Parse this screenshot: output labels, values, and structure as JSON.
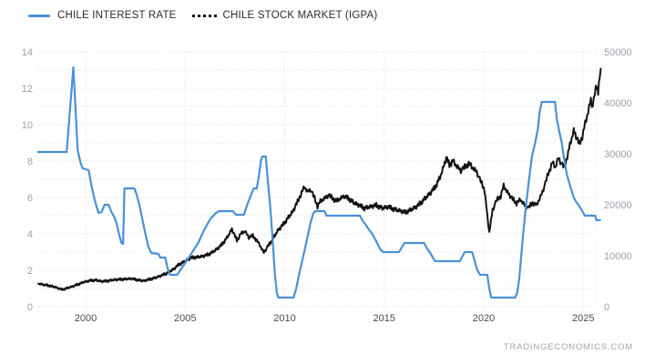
{
  "legend": [
    {
      "label": "CHILE INTEREST RATE",
      "color": "#4a90d9",
      "style": "solid"
    },
    {
      "label": "CHILE STOCK MARKET (IGPA)",
      "color": "#131313",
      "style": "dotted"
    }
  ],
  "watermark": "TRADINGECONOMICS.COM",
  "colors": {
    "interest_rate_line": "#4a90d9",
    "stock_line": "#131313",
    "grid": "#d9d9d9",
    "y_axis_labels": "#9aa0a8",
    "x_axis_labels": "#4a4a4a"
  },
  "chart_data": {
    "type": "line",
    "title": "",
    "x_range": [
      1997.6,
      2025.9
    ],
    "x_ticks": [
      "2000",
      "2005",
      "2010",
      "2015",
      "2020",
      "2025"
    ],
    "left_axis": {
      "label": "",
      "min": 0,
      "max": 14,
      "tick_labels": [
        "0",
        "2",
        "4",
        "6",
        "8",
        "10",
        "12",
        "14"
      ],
      "grid_step": 1
    },
    "right_axis": {
      "label": "",
      "min": 0,
      "max": 50000,
      "tick_labels": [
        "0",
        "10000",
        "20000",
        "30000",
        "40000",
        "50000"
      ]
    },
    "grid": "dotted",
    "legend_position": "top-left",
    "series": [
      {
        "name": "CHILE INTEREST RATE",
        "axis": "left",
        "color": "#4a90d9",
        "points": [
          [
            1997.62,
            8.5
          ],
          [
            1999.05,
            8.5
          ],
          [
            1999.38,
            13.15
          ],
          [
            1999.6,
            8.6
          ],
          [
            1999.75,
            7.9
          ],
          [
            1999.85,
            7.6
          ],
          [
            2000.15,
            7.5
          ],
          [
            2000.3,
            6.6
          ],
          [
            2000.45,
            5.9
          ],
          [
            2000.55,
            5.5
          ],
          [
            2000.65,
            5.15
          ],
          [
            2000.8,
            5.2
          ],
          [
            2000.95,
            5.6
          ],
          [
            2001.15,
            5.6
          ],
          [
            2001.3,
            5.2
          ],
          [
            2001.45,
            4.9
          ],
          [
            2001.55,
            4.6
          ],
          [
            2001.7,
            3.9
          ],
          [
            2001.8,
            3.5
          ],
          [
            2001.88,
            3.45
          ],
          [
            2001.95,
            6.5
          ],
          [
            2002.45,
            6.5
          ],
          [
            2002.55,
            6.2
          ],
          [
            2002.7,
            5.6
          ],
          [
            2002.85,
            4.8
          ],
          [
            2003.0,
            4.0
          ],
          [
            2003.15,
            3.3
          ],
          [
            2003.3,
            2.95
          ],
          [
            2003.65,
            2.9
          ],
          [
            2003.75,
            2.7
          ],
          [
            2004.0,
            2.7
          ],
          [
            2004.1,
            2.2
          ],
          [
            2004.2,
            1.8
          ],
          [
            2004.25,
            1.75
          ],
          [
            2004.6,
            1.75
          ],
          [
            2004.75,
            2.0
          ],
          [
            2005.0,
            2.4
          ],
          [
            2005.3,
            2.9
          ],
          [
            2005.65,
            3.5
          ],
          [
            2005.95,
            4.2
          ],
          [
            2006.25,
            4.8
          ],
          [
            2006.55,
            5.15
          ],
          [
            2006.7,
            5.25
          ],
          [
            2007.4,
            5.25
          ],
          [
            2007.55,
            5.05
          ],
          [
            2007.95,
            5.05
          ],
          [
            2008.15,
            5.7
          ],
          [
            2008.35,
            6.25
          ],
          [
            2008.45,
            6.5
          ],
          [
            2008.6,
            6.5
          ],
          [
            2008.72,
            7.3
          ],
          [
            2008.82,
            8.1
          ],
          [
            2008.88,
            8.25
          ],
          [
            2009.05,
            8.25
          ],
          [
            2009.15,
            7.0
          ],
          [
            2009.28,
            5.4
          ],
          [
            2009.4,
            3.6
          ],
          [
            2009.5,
            1.9
          ],
          [
            2009.6,
            0.8
          ],
          [
            2009.68,
            0.5
          ],
          [
            2010.45,
            0.5
          ],
          [
            2010.58,
            1.0
          ],
          [
            2010.72,
            1.75
          ],
          [
            2010.88,
            2.5
          ],
          [
            2011.02,
            3.2
          ],
          [
            2011.18,
            4.0
          ],
          [
            2011.32,
            4.7
          ],
          [
            2011.45,
            5.15
          ],
          [
            2011.55,
            5.25
          ],
          [
            2012.0,
            5.25
          ],
          [
            2012.1,
            5.0
          ],
          [
            2013.78,
            5.0
          ],
          [
            2013.9,
            4.75
          ],
          [
            2014.08,
            4.5
          ],
          [
            2014.22,
            4.25
          ],
          [
            2014.4,
            4.0
          ],
          [
            2014.6,
            3.6
          ],
          [
            2014.8,
            3.15
          ],
          [
            2014.95,
            3.0
          ],
          [
            2015.75,
            3.0
          ],
          [
            2015.88,
            3.25
          ],
          [
            2016.02,
            3.5
          ],
          [
            2017.0,
            3.5
          ],
          [
            2017.12,
            3.25
          ],
          [
            2017.28,
            3.0
          ],
          [
            2017.42,
            2.75
          ],
          [
            2017.55,
            2.5
          ],
          [
            2018.8,
            2.5
          ],
          [
            2018.92,
            2.75
          ],
          [
            2019.05,
            3.0
          ],
          [
            2019.42,
            3.0
          ],
          [
            2019.55,
            2.5
          ],
          [
            2019.68,
            2.0
          ],
          [
            2019.82,
            1.75
          ],
          [
            2020.18,
            1.75
          ],
          [
            2020.28,
            1.0
          ],
          [
            2020.38,
            0.5
          ],
          [
            2021.58,
            0.5
          ],
          [
            2021.68,
            0.75
          ],
          [
            2021.78,
            1.5
          ],
          [
            2021.88,
            2.75
          ],
          [
            2021.98,
            4.0
          ],
          [
            2022.12,
            5.5
          ],
          [
            2022.28,
            7.0
          ],
          [
            2022.42,
            8.25
          ],
          [
            2022.58,
            9.0
          ],
          [
            2022.72,
            9.75
          ],
          [
            2022.82,
            10.75
          ],
          [
            2022.92,
            11.25
          ],
          [
            2023.58,
            11.25
          ],
          [
            2023.68,
            10.25
          ],
          [
            2023.82,
            9.5
          ],
          [
            2023.92,
            9.0
          ],
          [
            2024.02,
            8.25
          ],
          [
            2024.18,
            7.25
          ],
          [
            2024.38,
            6.5
          ],
          [
            2024.52,
            6.0
          ],
          [
            2024.65,
            5.75
          ],
          [
            2024.82,
            5.5
          ],
          [
            2024.95,
            5.25
          ],
          [
            2025.08,
            5.0
          ],
          [
            2025.6,
            5.0
          ],
          [
            2025.65,
            4.75
          ],
          [
            2025.85,
            4.75
          ]
        ]
      },
      {
        "name": "CHILE STOCK MARKET (IGPA)",
        "axis": "right",
        "color": "#131313",
        "jitter": {
          "pattern": [
            0.2,
            -0.5,
            0.8,
            -0.2,
            0.5,
            -0.9,
            0.1,
            0.7,
            -0.4,
            1.0,
            -0.7,
            0.3,
            -1.0,
            0.6,
            -0.15,
            0.9,
            -0.6
          ],
          "base_amp": 150,
          "value_amp": 0.016
        },
        "points": [
          [
            1997.62,
            4500
          ],
          [
            1997.9,
            4300
          ],
          [
            1998.2,
            4100
          ],
          [
            1998.5,
            3800
          ],
          [
            1998.8,
            3350
          ],
          [
            1999.0,
            3550
          ],
          [
            1999.3,
            3900
          ],
          [
            1999.6,
            4350
          ],
          [
            1999.9,
            4800
          ],
          [
            2000.2,
            5100
          ],
          [
            2000.5,
            5200
          ],
          [
            2000.8,
            4950
          ],
          [
            2001.1,
            5050
          ],
          [
            2001.4,
            5250
          ],
          [
            2001.7,
            5350
          ],
          [
            2002.0,
            5400
          ],
          [
            2002.3,
            5500
          ],
          [
            2002.6,
            5250
          ],
          [
            2002.9,
            5050
          ],
          [
            2003.2,
            5350
          ],
          [
            2003.5,
            5650
          ],
          [
            2003.8,
            6100
          ],
          [
            2004.1,
            6600
          ],
          [
            2004.4,
            7300
          ],
          [
            2004.7,
            8300
          ],
          [
            2005.0,
            8900
          ],
          [
            2005.3,
            9600
          ],
          [
            2005.6,
            9700
          ],
          [
            2005.9,
            9900
          ],
          [
            2006.2,
            10300
          ],
          [
            2006.5,
            11000
          ],
          [
            2006.8,
            12000
          ],
          [
            2007.1,
            13500
          ],
          [
            2007.35,
            15200
          ],
          [
            2007.6,
            13000
          ],
          [
            2007.8,
            14300
          ],
          [
            2008.0,
            14800
          ],
          [
            2008.2,
            13600
          ],
          [
            2008.4,
            13900
          ],
          [
            2008.6,
            13000
          ],
          [
            2008.8,
            11700
          ],
          [
            2008.95,
            10600
          ],
          [
            2009.15,
            11800
          ],
          [
            2009.4,
            13200
          ],
          [
            2009.65,
            14900
          ],
          [
            2009.9,
            16000
          ],
          [
            2010.15,
            17300
          ],
          [
            2010.4,
            18600
          ],
          [
            2010.65,
            20600
          ],
          [
            2010.85,
            22400
          ],
          [
            2011.0,
            23500
          ],
          [
            2011.15,
            22500
          ],
          [
            2011.3,
            23000
          ],
          [
            2011.5,
            21300
          ],
          [
            2011.65,
            19700
          ],
          [
            2011.8,
            20700
          ],
          [
            2012.0,
            21200
          ],
          [
            2012.2,
            21900
          ],
          [
            2012.4,
            21300
          ],
          [
            2012.6,
            20700
          ],
          [
            2012.8,
            21200
          ],
          [
            2013.0,
            21700
          ],
          [
            2013.25,
            21100
          ],
          [
            2013.5,
            20300
          ],
          [
            2013.75,
            19900
          ],
          [
            2014.0,
            19300
          ],
          [
            2014.3,
            19600
          ],
          [
            2014.6,
            19900
          ],
          [
            2014.9,
            19300
          ],
          [
            2015.2,
            19600
          ],
          [
            2015.5,
            19100
          ],
          [
            2015.8,
            18800
          ],
          [
            2016.05,
            18500
          ],
          [
            2016.35,
            19000
          ],
          [
            2016.65,
            19700
          ],
          [
            2016.95,
            20800
          ],
          [
            2017.25,
            22000
          ],
          [
            2017.55,
            23400
          ],
          [
            2017.8,
            25300
          ],
          [
            2018.0,
            27600
          ],
          [
            2018.12,
            29300
          ],
          [
            2018.28,
            27800
          ],
          [
            2018.45,
            28600
          ],
          [
            2018.65,
            27500
          ],
          [
            2018.85,
            26700
          ],
          [
            2019.05,
            27400
          ],
          [
            2019.25,
            28100
          ],
          [
            2019.45,
            27200
          ],
          [
            2019.65,
            26400
          ],
          [
            2019.85,
            24600
          ],
          [
            2020.05,
            22800
          ],
          [
            2020.18,
            17800
          ],
          [
            2020.28,
            14600
          ],
          [
            2020.45,
            19000
          ],
          [
            2020.65,
            20900
          ],
          [
            2020.85,
            21700
          ],
          [
            2021.0,
            23700
          ],
          [
            2021.2,
            22400
          ],
          [
            2021.45,
            21100
          ],
          [
            2021.65,
            20300
          ],
          [
            2021.85,
            21000
          ],
          [
            2022.05,
            19900
          ],
          [
            2022.25,
            19400
          ],
          [
            2022.45,
            20400
          ],
          [
            2022.65,
            19900
          ],
          [
            2022.85,
            21500
          ],
          [
            2023.05,
            23600
          ],
          [
            2023.25,
            26200
          ],
          [
            2023.45,
            28300
          ],
          [
            2023.6,
            27300
          ],
          [
            2023.75,
            29200
          ],
          [
            2023.9,
            28100
          ],
          [
            2024.05,
            27300
          ],
          [
            2024.2,
            29600
          ],
          [
            2024.38,
            32400
          ],
          [
            2024.52,
            34500
          ],
          [
            2024.68,
            33100
          ],
          [
            2024.8,
            31900
          ],
          [
            2024.95,
            33400
          ],
          [
            2025.1,
            35900
          ],
          [
            2025.25,
            38300
          ],
          [
            2025.38,
            40600
          ],
          [
            2025.48,
            39200
          ],
          [
            2025.58,
            41800
          ],
          [
            2025.68,
            43300
          ],
          [
            2025.75,
            42400
          ],
          [
            2025.82,
            44800
          ],
          [
            2025.88,
            46700
          ]
        ]
      }
    ]
  }
}
